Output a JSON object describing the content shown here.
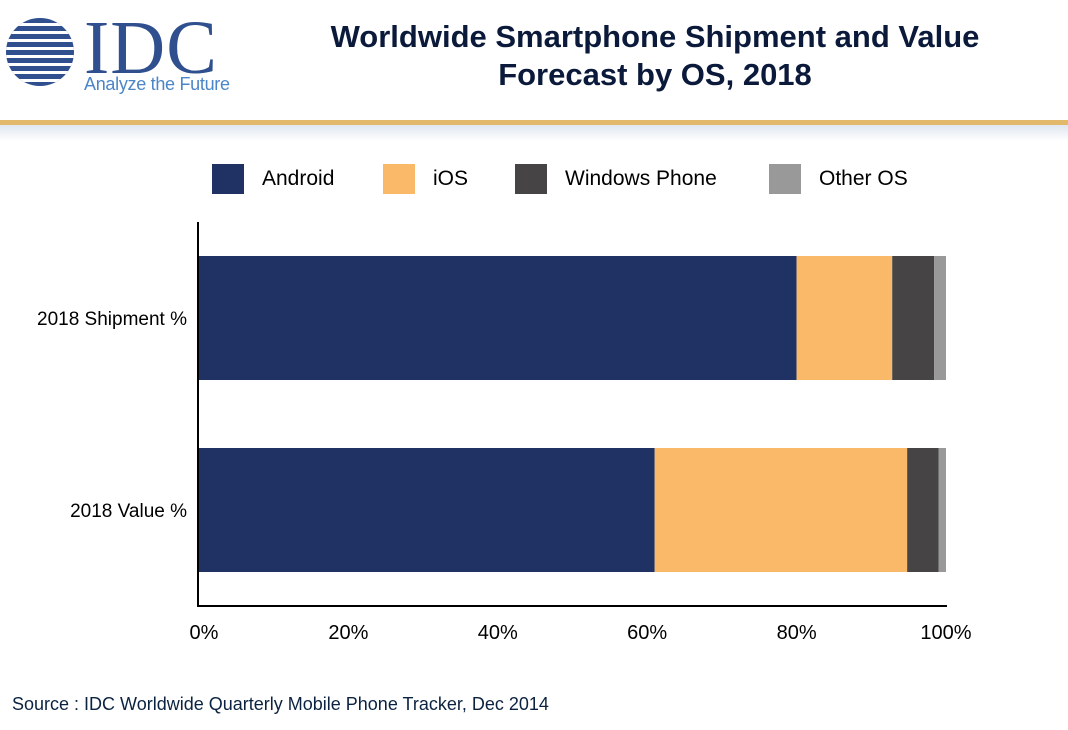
{
  "logo": {
    "name": "IDC",
    "tagline": "Analyze the Future"
  },
  "header": {
    "title_line1": "Worldwide Smartphone Shipment and Value",
    "title_line2": "Forecast by OS, 2018"
  },
  "colors": {
    "Android": "#1f3263",
    "iOS": "#f9b968",
    "Windows Phone": "#464444",
    "Other OS": "#999999",
    "accent_rule": "#e2b86b"
  },
  "chart_data": {
    "type": "bar",
    "orientation": "horizontal",
    "stacked": true,
    "categories": [
      "2018 Shipment %",
      "2018 Value %"
    ],
    "series": [
      {
        "name": "Android",
        "values": [
          80.0,
          61.0
        ]
      },
      {
        "name": "iOS",
        "values": [
          12.8,
          33.8
        ]
      },
      {
        "name": "Windows Phone",
        "values": [
          5.6,
          4.2
        ]
      },
      {
        "name": "Other OS",
        "values": [
          1.6,
          1.0
        ]
      }
    ],
    "xlim": [
      0,
      100
    ],
    "x_tick_labels": [
      "0%",
      "20%",
      "40%",
      "60%",
      "80%",
      "100%"
    ],
    "grid": false,
    "legend_position": "top",
    "title": "Worldwide Smartphone Shipment and Value Forecast by OS, 2018"
  },
  "source": "Source : IDC Worldwide Quarterly Mobile Phone Tracker, Dec 2014"
}
